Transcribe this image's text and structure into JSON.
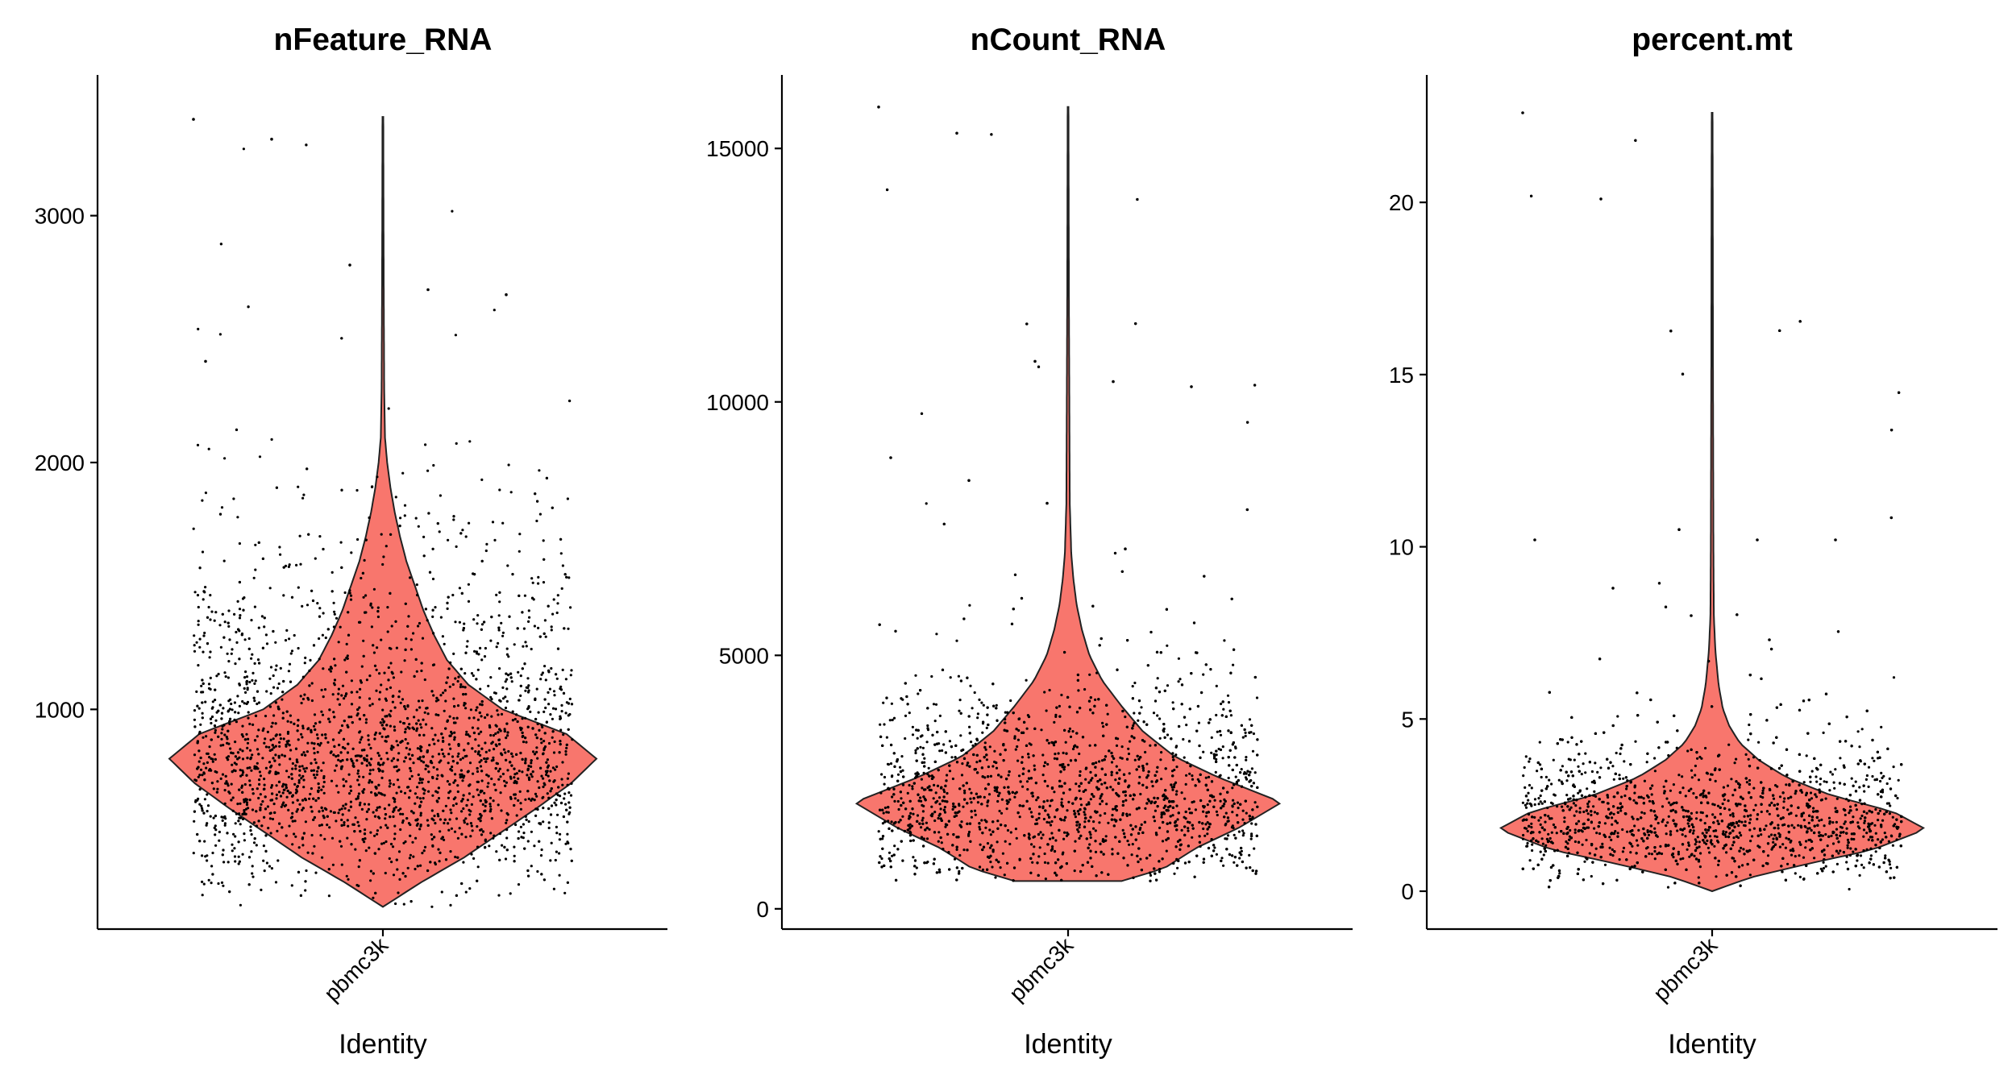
{
  "chart_data": [
    {
      "type": "violin",
      "title": "nFeature_RNA",
      "xlabel": "Identity",
      "ylabel": "",
      "categories": [
        "pbmc3k"
      ],
      "ylim": [
        110,
        3570
      ],
      "yticks": [
        1000,
        2000,
        3000
      ],
      "fill_color": "#F8766D",
      "point_color": "#000000",
      "violin": {
        "min": 200,
        "max": 3400,
        "median": 817,
        "density_profile": [
          [
            200,
            0.0
          ],
          [
            300,
            0.18
          ],
          [
            400,
            0.38
          ],
          [
            500,
            0.55
          ],
          [
            600,
            0.72
          ],
          [
            700,
            0.88
          ],
          [
            800,
            1.0
          ],
          [
            900,
            0.86
          ],
          [
            1000,
            0.56
          ],
          [
            1100,
            0.4
          ],
          [
            1200,
            0.3
          ],
          [
            1300,
            0.24
          ],
          [
            1400,
            0.19
          ],
          [
            1500,
            0.15
          ],
          [
            1600,
            0.11
          ],
          [
            1700,
            0.08
          ],
          [
            1800,
            0.055
          ],
          [
            1900,
            0.035
          ],
          [
            2000,
            0.02
          ],
          [
            2100,
            0.01
          ],
          [
            2300,
            0.006
          ],
          [
            2700,
            0.004
          ],
          [
            3000,
            0.003
          ],
          [
            3400,
            0.002
          ]
        ]
      },
      "outliers": [
        3390,
        3310,
        2800,
        2700,
        2680,
        2410
      ]
    },
    {
      "type": "violin",
      "title": "nCount_RNA",
      "xlabel": "Identity",
      "ylabel": "",
      "categories": [
        "pbmc3k"
      ],
      "ylim": [
        -400,
        16450
      ],
      "yticks": [
        0,
        5000,
        10000,
        15000
      ],
      "fill_color": "#F8766D",
      "point_color": "#000000",
      "violin": {
        "min": 548,
        "max": 15818,
        "median": 2197,
        "density_profile": [
          [
            548,
            0.25
          ],
          [
            800,
            0.45
          ],
          [
            1200,
            0.6
          ],
          [
            1600,
            0.8
          ],
          [
            2100,
            1.0
          ],
          [
            2600,
            0.7
          ],
          [
            3000,
            0.5
          ],
          [
            3500,
            0.35
          ],
          [
            4000,
            0.25
          ],
          [
            4500,
            0.16
          ],
          [
            5000,
            0.1
          ],
          [
            5500,
            0.065
          ],
          [
            6000,
            0.04
          ],
          [
            6500,
            0.025
          ],
          [
            7000,
            0.015
          ],
          [
            8000,
            0.008
          ],
          [
            10000,
            0.006
          ],
          [
            12000,
            0.004
          ],
          [
            15818,
            0.002
          ]
        ]
      },
      "outliers": [
        15818,
        15300,
        10800,
        10400,
        10300,
        8900,
        8450,
        8000,
        7100
      ]
    },
    {
      "type": "violin",
      "title": "percent.mt",
      "xlabel": "Identity",
      "ylabel": "",
      "categories": [
        "pbmc3k"
      ],
      "ylim": [
        -1.1,
        23.7
      ],
      "yticks": [
        0,
        5,
        10,
        15,
        20
      ],
      "fill_color": "#F8766D",
      "point_color": "#000000",
      "violin": {
        "min": 0,
        "max": 22.6,
        "median": 2.0,
        "density_profile": [
          [
            0,
            0.0
          ],
          [
            0.4,
            0.18
          ],
          [
            0.8,
            0.45
          ],
          [
            1.2,
            0.75
          ],
          [
            1.8,
            1.0
          ],
          [
            2.3,
            0.85
          ],
          [
            2.8,
            0.55
          ],
          [
            3.3,
            0.35
          ],
          [
            3.8,
            0.22
          ],
          [
            4.3,
            0.13
          ],
          [
            4.8,
            0.08
          ],
          [
            5.3,
            0.05
          ],
          [
            6,
            0.03
          ],
          [
            7,
            0.015
          ],
          [
            8,
            0.008
          ],
          [
            10,
            0.006
          ],
          [
            15,
            0.004
          ],
          [
            20,
            0.003
          ],
          [
            22.6,
            0.002
          ]
        ]
      },
      "outliers": [
        22.6,
        20.1,
        10.5,
        10.2,
        10.2,
        10.2,
        8.8,
        8.0,
        7.3
      ]
    }
  ]
}
